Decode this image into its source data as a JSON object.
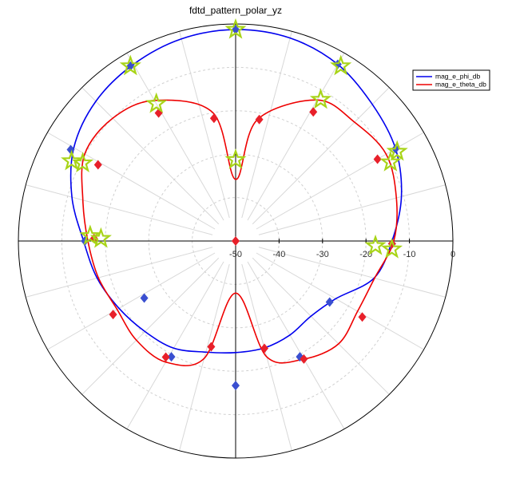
{
  "chart_data": {
    "type": "polar",
    "title": "fdtd_pattern_polar_yz",
    "rlim": [
      -50,
      0
    ],
    "rticks": [
      -50,
      -40,
      -30,
      -20,
      -10,
      0
    ],
    "thetaticks": [
      0,
      15,
      30,
      45,
      60,
      75,
      90,
      105,
      120,
      135,
      150,
      165,
      180,
      195,
      210,
      225,
      240,
      255,
      270,
      285,
      300,
      315,
      330,
      345
    ],
    "grid": true,
    "legend": "upper right",
    "series": [
      {
        "name": "mag_e_phi_db",
        "color": "#0000ee",
        "theta": [
          0,
          15,
          30,
          45,
          60,
          75,
          90,
          105,
          120,
          135,
          150,
          165,
          180,
          195,
          210,
          225,
          240,
          255,
          270,
          285,
          300,
          315,
          330,
          345
        ],
        "values": [
          -1.3,
          -1.6,
          -3,
          -5.5,
          -7.5,
          -10.5,
          -14,
          -17,
          -23.4,
          -25.5,
          -25,
          -24.5,
          -24.3,
          -23.5,
          -21.5,
          -20.5,
          -19,
          -17,
          -15,
          -11,
          -7,
          -4.5,
          -3,
          -1.8
        ]
      },
      {
        "name": "mag_e_theta_db",
        "color": "#ee0000",
        "theta": [
          0,
          10,
          30,
          45,
          60,
          75,
          90,
          105,
          120,
          135,
          150,
          165,
          180,
          195,
          210,
          225,
          240,
          255,
          270,
          285,
          300,
          315,
          330,
          350
        ],
        "values": [
          -35.8,
          -21.7,
          -12.5,
          -11.3,
          -10,
          -11.7,
          -13.6,
          -16.9,
          -17.6,
          -16.5,
          -18.6,
          -22.4,
          -38,
          -22,
          -17.8,
          -17.7,
          -18.5,
          -17.3,
          -16,
          -13.6,
          -9.9,
          -10,
          -12.6,
          -20
        ]
      }
    ],
    "markers": [
      {
        "shape": "diamond",
        "color": "#3a4fd0",
        "theta": [
          0,
          30,
          60,
          91,
          123,
          151,
          180,
          209,
          238,
          270,
          299,
          329
        ],
        "values": [
          -1.3,
          -3,
          -7.5,
          -14,
          -24.2,
          -19.5,
          -16.7,
          -19.5,
          -25.2,
          -15.3,
          -6.6,
          -3
        ]
      },
      {
        "shape": "diamond",
        "color": "#e8202a",
        "theta": [
          0,
          11,
          31,
          60,
          91,
          121,
          150,
          165,
          193,
          211,
          239,
          271,
          299,
          329,
          350
        ],
        "values": [
          -50,
          -21.5,
          -15.3,
          -12.3,
          -14,
          -16,
          -18.6,
          -24.4,
          -25,
          -18.8,
          -17.1,
          -17.4,
          -13.8,
          -15.6,
          -21.3
        ]
      },
      {
        "shape": "star",
        "color": "#a8d418",
        "theta": [
          0,
          31,
          31,
          61,
          63,
          92,
          93,
          271,
          272,
          296,
          297,
          330,
          329,
          0
        ],
        "values": [
          -1.3,
          -12,
          -3,
          -7.5,
          -10,
          -17.8,
          -14,
          -19,
          -16.5,
          -8,
          -10.5,
          -13.5,
          -3,
          -31.3
        ]
      }
    ]
  }
}
